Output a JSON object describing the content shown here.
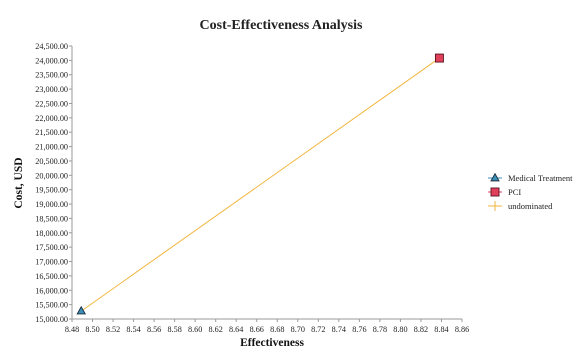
{
  "chart_data": {
    "type": "scatter",
    "title": "Cost-Effectiveness Analysis",
    "xlabel": "Effectiveness",
    "ylabel": "Cost, USD",
    "xlim": [
      8.48,
      8.86
    ],
    "ylim": [
      15000,
      24500
    ],
    "x_ticks": [
      "8.48",
      "8.50",
      "8.52",
      "8.54",
      "8.56",
      "8.58",
      "8.60",
      "8.62",
      "8.64",
      "8.66",
      "8.68",
      "8.70",
      "8.72",
      "8.74",
      "8.76",
      "8.78",
      "8.80",
      "8.82",
      "8.84",
      "8.86"
    ],
    "y_ticks": [
      "15,000.00",
      "15,500.00",
      "16,000.00",
      "16,500.00",
      "17,000.00",
      "17,500.00",
      "18,000.00",
      "18,500.00",
      "19,000.00",
      "19,500.00",
      "20,000.00",
      "20,500.00",
      "21,000.00",
      "21,500.00",
      "22,000.00",
      "22,500.00",
      "23,000.00",
      "23,500.00",
      "24,000.00",
      "24,500.00"
    ],
    "legend_position": "right",
    "grid": false,
    "series": [
      {
        "name": "Medical Treatment",
        "marker": "triangle",
        "color": "#3a8fb8",
        "points": [
          {
            "x": 8.489,
            "y": 15275
          }
        ]
      },
      {
        "name": "PCI",
        "marker": "square",
        "color": "#e0405a",
        "points": [
          {
            "x": 8.838,
            "y": 24080
          }
        ]
      },
      {
        "name": "undominated",
        "marker": "line",
        "color": "#f2b640",
        "points": [
          {
            "x": 8.489,
            "y": 15275
          },
          {
            "x": 8.838,
            "y": 24080
          }
        ]
      }
    ]
  }
}
